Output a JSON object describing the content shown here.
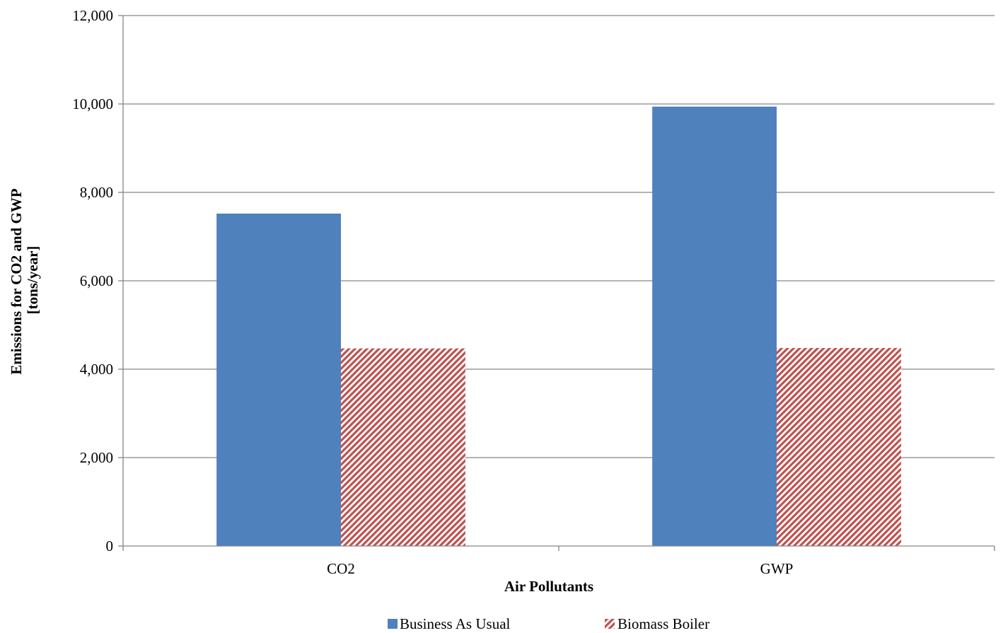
{
  "chart_data": {
    "type": "bar",
    "categories": [
      "CO2",
      "GWP"
    ],
    "series": [
      {
        "name": "Business As Usual",
        "values": [
          7520,
          9940
        ],
        "color": "#4F81BD",
        "pattern": "solid"
      },
      {
        "name": "Biomass Boiler",
        "values": [
          4470,
          4480
        ],
        "color": "#C0504D",
        "pattern": "diagonal-hatch"
      }
    ],
    "xlabel": "Air Pollutants",
    "ylabel": [
      "Emissions for CO2 and GWP",
      "[tons/year]"
    ],
    "ylim": [
      0,
      12000
    ],
    "yticks": [
      "0",
      "2,000",
      "4,000",
      "6,000",
      "8,000",
      "10,000",
      "12,000"
    ],
    "ytick_values": [
      0,
      2000,
      4000,
      6000,
      8000,
      10000,
      12000
    ],
    "grid": true,
    "legend": "bottom-center"
  }
}
